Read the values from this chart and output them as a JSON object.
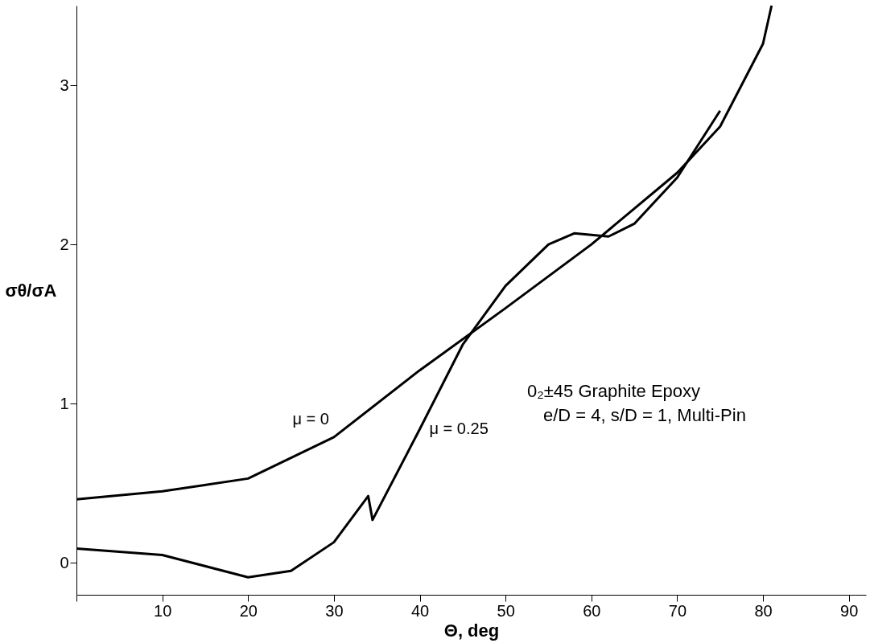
{
  "chart_data": {
    "type": "line",
    "xlabel": "Θ, deg",
    "ylabel": "σθ/σA",
    "xlim": [
      0,
      92
    ],
    "ylim": [
      -0.2,
      3.5
    ],
    "xticks": [
      {
        "value": 0,
        "label": null
      },
      10,
      20,
      30,
      40,
      50,
      60,
      70,
      80,
      90
    ],
    "yticks": [
      0,
      1,
      2,
      3
    ],
    "grid": false,
    "line_style": "solid",
    "marker": "none",
    "series": [
      {
        "name": "μ = 0",
        "color": "#000000",
        "x": [
          0,
          10,
          20,
          30,
          40,
          50,
          60,
          70,
          75,
          80,
          81
        ],
        "values": [
          0.4,
          0.45,
          0.53,
          0.79,
          1.21,
          1.6,
          2.0,
          2.45,
          2.74,
          3.26,
          3.5
        ]
      },
      {
        "name": "μ = 0.25",
        "color": "#000000",
        "x": [
          0,
          10,
          20,
          25,
          30,
          34,
          34.5,
          40,
          45,
          50,
          55,
          58,
          62,
          65,
          70,
          75
        ],
        "values": [
          0.09,
          0.05,
          -0.09,
          -0.05,
          0.13,
          0.42,
          0.27,
          0.84,
          1.37,
          1.74,
          2.0,
          2.07,
          2.05,
          2.13,
          2.42,
          2.84
        ]
      }
    ],
    "annotations": [
      "0₂±45 Graphite Epoxy",
      "e/D = 4, s/D = 1, Multi-Pin"
    ]
  }
}
